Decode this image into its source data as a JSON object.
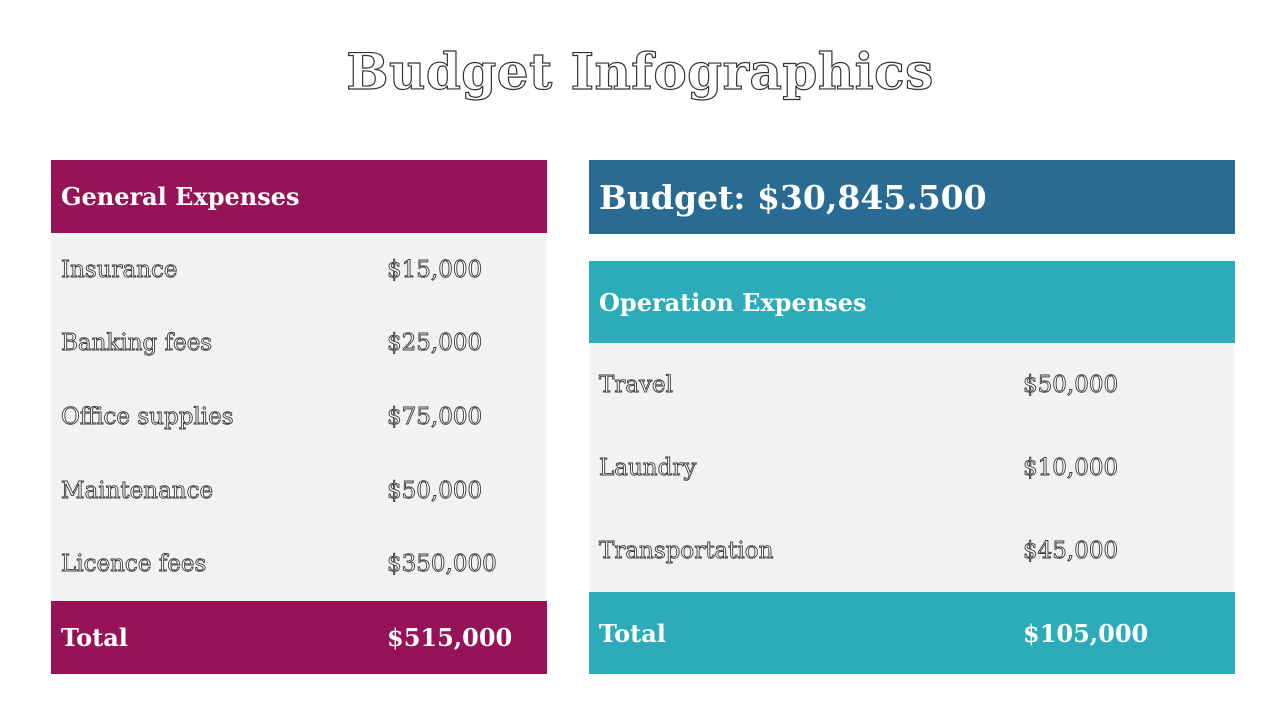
{
  "title": "Budget Infographics",
  "colors": {
    "general": "#951356",
    "budget": "#2a6b94",
    "operation": "#2bacb8",
    "row_bg": "#f2f2f2"
  },
  "general": {
    "header": "General Expenses",
    "items": [
      {
        "label": "Insurance",
        "value": "$15,000"
      },
      {
        "label": "Banking fees",
        "value": "$25,000"
      },
      {
        "label": "Office supplies",
        "value": "$75,000"
      },
      {
        "label": "Maintenance",
        "value": "$50,000"
      },
      {
        "label": "Licence fees",
        "value": "$350,000"
      }
    ],
    "total_label": "Total",
    "total_value": "$515,000"
  },
  "budget": {
    "text": "Budget: $30,845.500"
  },
  "operation": {
    "header": "Operation Expenses",
    "items": [
      {
        "label": "Travel",
        "value": "$50,000"
      },
      {
        "label": "Laundry",
        "value": "$10,000"
      },
      {
        "label": "Transportation",
        "value": "$45,000"
      }
    ],
    "total_label": "Total",
    "total_value": "$105,000"
  }
}
